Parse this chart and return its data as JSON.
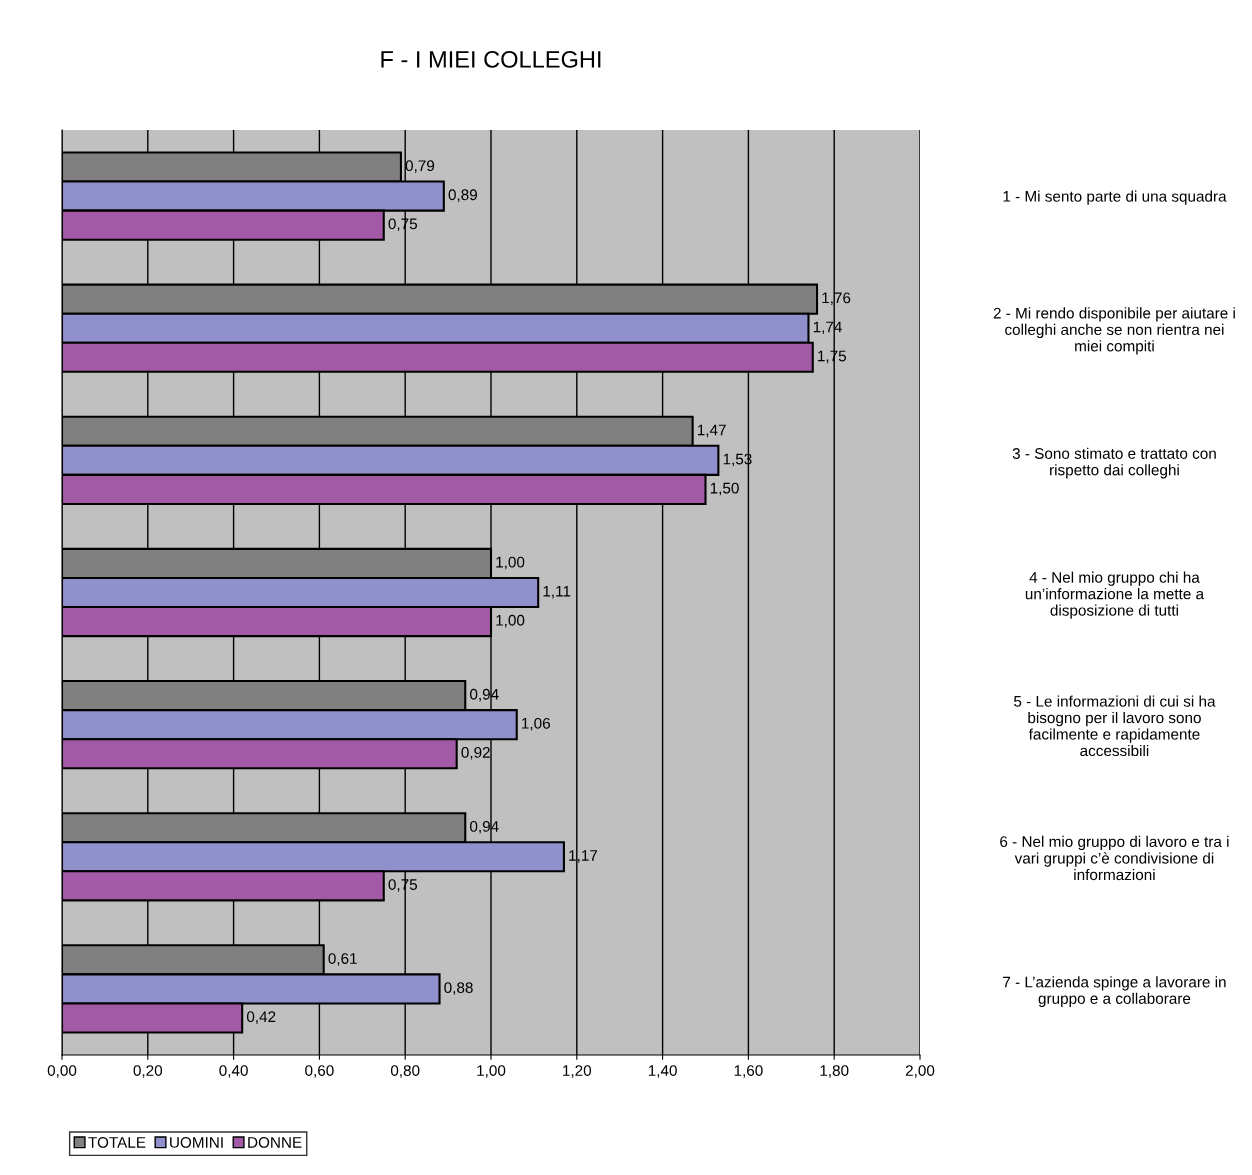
{
  "chart_data": {
    "type": "bar",
    "orientation": "horizontal",
    "title": "F - I MIEI COLLEGHI",
    "categories": [
      "1 - Mi sento parte di una squadra",
      "2 - Mi rendo disponibile per aiutare i\ncolleghi anche se non rientra nei\nmiei compiti",
      "3 - Sono stimato e trattato con\nrispetto dai colleghi",
      "4 - Nel mio gruppo chi ha\nun’informazione la mette a\ndisposizione di tutti",
      "5 - Le informazioni di cui si ha\nbisogno per il lavoro sono\nfacilmente e rapidamente\naccessibili",
      "6 - Nel mio gruppo di lavoro e tra i\nvari gruppi c’è condivisione di\ninformazioni",
      "7 - L’azienda spinge a lavorare in\ngruppo e a collaborare"
    ],
    "series": [
      {
        "name": "TOTALE",
        "color": "#808080",
        "values": [
          0.79,
          1.76,
          1.47,
          1.0,
          0.94,
          0.94,
          0.61
        ],
        "value_labels": [
          "0,79",
          "1,76",
          "1,47",
          "1,00",
          "0,94",
          "0,94",
          "0,61"
        ]
      },
      {
        "name": "UOMINI",
        "color": "#9090cc",
        "values": [
          0.89,
          1.74,
          1.53,
          1.11,
          1.06,
          1.17,
          0.88
        ],
        "value_labels": [
          "0,89",
          "1,74",
          "1,53",
          "1,11",
          "1,06",
          "1,17",
          "0,88"
        ]
      },
      {
        "name": "DONNE",
        "color": "#a35aa6",
        "values": [
          0.75,
          1.75,
          1.5,
          1.0,
          0.92,
          0.75,
          0.42
        ],
        "value_labels": [
          "0,75",
          "1,75",
          "1,50",
          "1,00",
          "0,92",
          "0,75",
          "0,42"
        ]
      }
    ],
    "xlim": [
      0,
      2
    ],
    "xticks": [
      {
        "value": 0,
        "label": "0,00"
      },
      {
        "value": 0.2,
        "label": "0,20"
      },
      {
        "value": 0.4,
        "label": "0,40"
      },
      {
        "value": 0.6,
        "label": "0,60"
      },
      {
        "value": 0.8,
        "label": "0,80"
      },
      {
        "value": 1.0,
        "label": "1,00"
      },
      {
        "value": 1.2,
        "label": "1,20"
      },
      {
        "value": 1.4,
        "label": "1,40"
      },
      {
        "value": 1.6,
        "label": "1,60"
      },
      {
        "value": 1.8,
        "label": "1,80"
      },
      {
        "value": 2.0,
        "label": "2,00"
      }
    ],
    "grid": "x",
    "legend": "bottom left"
  }
}
